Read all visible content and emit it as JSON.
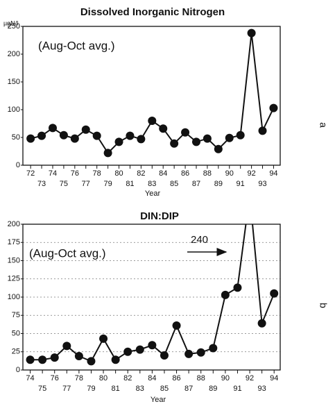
{
  "chart_data": [
    {
      "type": "line",
      "title": "Dissolved Inorganic Nitrogen",
      "y_label": "µgN/l",
      "x_label": "Year",
      "annotation": "(Aug-Oct avg.)",
      "side_label": "a",
      "x": [
        72,
        73,
        74,
        75,
        76,
        77,
        78,
        79,
        80,
        81,
        82,
        83,
        84,
        85,
        86,
        87,
        88,
        89,
        90,
        91,
        92,
        93,
        94
      ],
      "values": [
        48,
        53,
        67,
        54,
        48,
        64,
        53,
        22,
        42,
        53,
        47,
        80,
        66,
        39,
        59,
        42,
        48,
        29,
        49,
        54,
        238,
        62,
        103
      ],
      "color": "#111111",
      "xlim": [
        71.3,
        94.6
      ],
      "ylim": [
        0,
        250
      ],
      "xticks": [
        72,
        73,
        74,
        75,
        76,
        77,
        78,
        79,
        80,
        81,
        82,
        83,
        84,
        85,
        86,
        87,
        88,
        89,
        90,
        91,
        92,
        93,
        94
      ],
      "yticks": [
        0,
        50,
        100,
        150,
        200,
        250
      ],
      "grid": false
    },
    {
      "type": "line",
      "title": "DIN:DIP",
      "x_label": "Year",
      "annotation": "(Aug-Oct avg.)",
      "side_label": "b",
      "x": [
        74,
        75,
        76,
        77,
        78,
        79,
        80,
        81,
        82,
        83,
        84,
        85,
        86,
        87,
        88,
        89,
        90,
        91,
        92,
        93,
        94
      ],
      "values": [
        14,
        14,
        17,
        33,
        19,
        12,
        43,
        14,
        25,
        28,
        34,
        20,
        61,
        22,
        24,
        30,
        103,
        113,
        240,
        64,
        105
      ],
      "color": "#111111",
      "xlim": [
        73.4,
        94.5
      ],
      "ylim": [
        0,
        200
      ],
      "xticks": [
        74,
        75,
        76,
        77,
        78,
        79,
        80,
        81,
        82,
        83,
        84,
        85,
        86,
        87,
        88,
        89,
        90,
        91,
        92,
        93,
        94
      ],
      "yticks": [
        0,
        25,
        50,
        75,
        100,
        125,
        150,
        175,
        200
      ],
      "grid": true
    }
  ]
}
